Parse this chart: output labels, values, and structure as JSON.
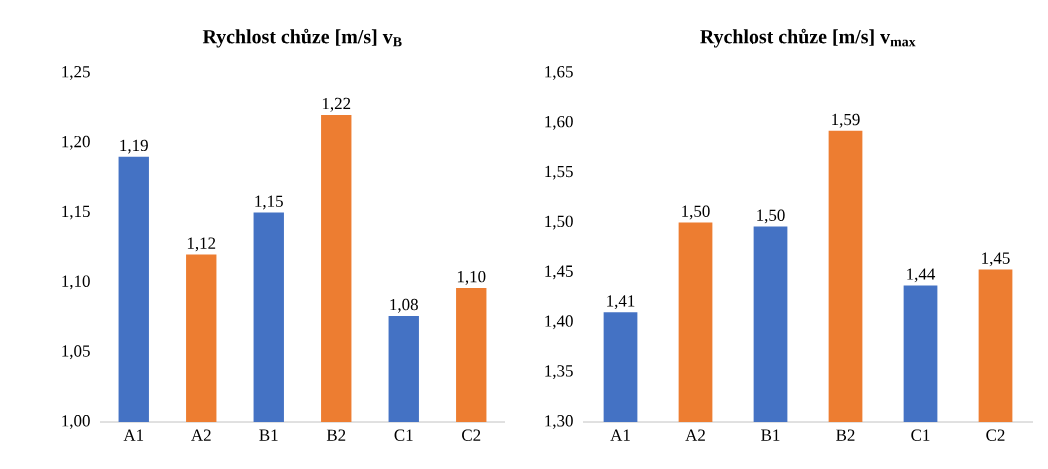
{
  "chart_data": [
    {
      "type": "bar",
      "title": "Rychlost chůze [m/s] v$_{B}$",
      "categories": [
        "A1",
        "A2",
        "B1",
        "B2",
        "C1",
        "C2"
      ],
      "values": [
        1.19,
        1.12,
        1.15,
        1.22,
        1.076,
        1.096
      ],
      "value_labels": [
        "1,19",
        "1,12",
        "1,15",
        "1,22",
        "1,08",
        "1,10"
      ],
      "colors": [
        "#4472c4",
        "#ed7d31",
        "#4472c4",
        "#ed7d31",
        "#4472c4",
        "#ed7d31"
      ],
      "ylim": [
        1.0,
        1.25
      ],
      "yticks": [
        {
          "value": 1.0,
          "label": "1,00"
        },
        {
          "value": 1.05,
          "label": "1,05"
        },
        {
          "value": 1.1,
          "label": "1,10"
        },
        {
          "value": 1.15,
          "label": "1,15"
        },
        {
          "value": 1.2,
          "label": "1,20"
        },
        {
          "value": 1.25,
          "label": "1,25"
        }
      ]
    },
    {
      "type": "bar",
      "title": "Rychlost chůze [m/s] v$_{max}$",
      "categories": [
        "A1",
        "A2",
        "B1",
        "B2",
        "C1",
        "C2"
      ],
      "values": [
        1.41,
        1.5,
        1.496,
        1.592,
        1.437,
        1.453
      ],
      "value_labels": [
        "1,41",
        "1,50",
        "1,50",
        "1,59",
        "1,44",
        "1,45"
      ],
      "colors": [
        "#4472c4",
        "#ed7d31",
        "#4472c4",
        "#ed7d31",
        "#4472c4",
        "#ed7d31"
      ],
      "ylim": [
        1.3,
        1.65
      ],
      "yticks": [
        {
          "value": 1.3,
          "label": "1,30"
        },
        {
          "value": 1.35,
          "label": "1,35"
        },
        {
          "value": 1.4,
          "label": "1,40"
        },
        {
          "value": 1.45,
          "label": "1,45"
        },
        {
          "value": 1.5,
          "label": "1,50"
        },
        {
          "value": 1.55,
          "label": "1,55"
        },
        {
          "value": 1.6,
          "label": "1,60"
        },
        {
          "value": 1.65,
          "label": "1,65"
        }
      ]
    }
  ]
}
